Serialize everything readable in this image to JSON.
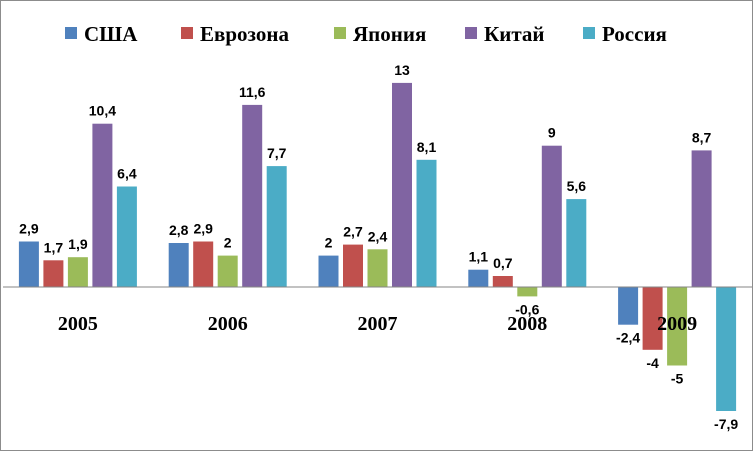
{
  "chart_data": {
    "type": "bar",
    "categories": [
      "2005",
      "2006",
      "2007",
      "2008",
      "2009"
    ],
    "series": [
      {
        "name": "США",
        "color": "#4f81bd",
        "values": [
          2.9,
          2.8,
          2.0,
          1.1,
          -2.4
        ],
        "labels": [
          "2,9",
          "2,8",
          "2",
          "1,1",
          "-2,4"
        ]
      },
      {
        "name": "Еврозона",
        "color": "#c0504d",
        "values": [
          1.7,
          2.9,
          2.7,
          0.7,
          -4.0
        ],
        "labels": [
          "1,7",
          "2,9",
          "2,7",
          "0,7",
          "-4"
        ]
      },
      {
        "name": "Япония",
        "color": "#9bbb59",
        "values": [
          1.9,
          2.0,
          2.4,
          -0.6,
          -5.0
        ],
        "labels": [
          "1,9",
          "2",
          "2,4",
          "-0,6",
          "-5"
        ]
      },
      {
        "name": "Китай",
        "color": "#8064a2",
        "values": [
          10.4,
          11.6,
          13.0,
          9.0,
          8.7
        ],
        "labels": [
          "10,4",
          "11,6",
          "13",
          "9",
          "8,7"
        ]
      },
      {
        "name": "Россия",
        "color": "#4bacc6",
        "values": [
          6.4,
          7.7,
          8.1,
          5.6,
          -7.9
        ],
        "labels": [
          "6,4",
          "7,7",
          "8,1",
          "5,6",
          "-7,9"
        ]
      }
    ],
    "ylim": [
      -8.5,
      13.5
    ],
    "grid": false,
    "legend_position": "top"
  }
}
